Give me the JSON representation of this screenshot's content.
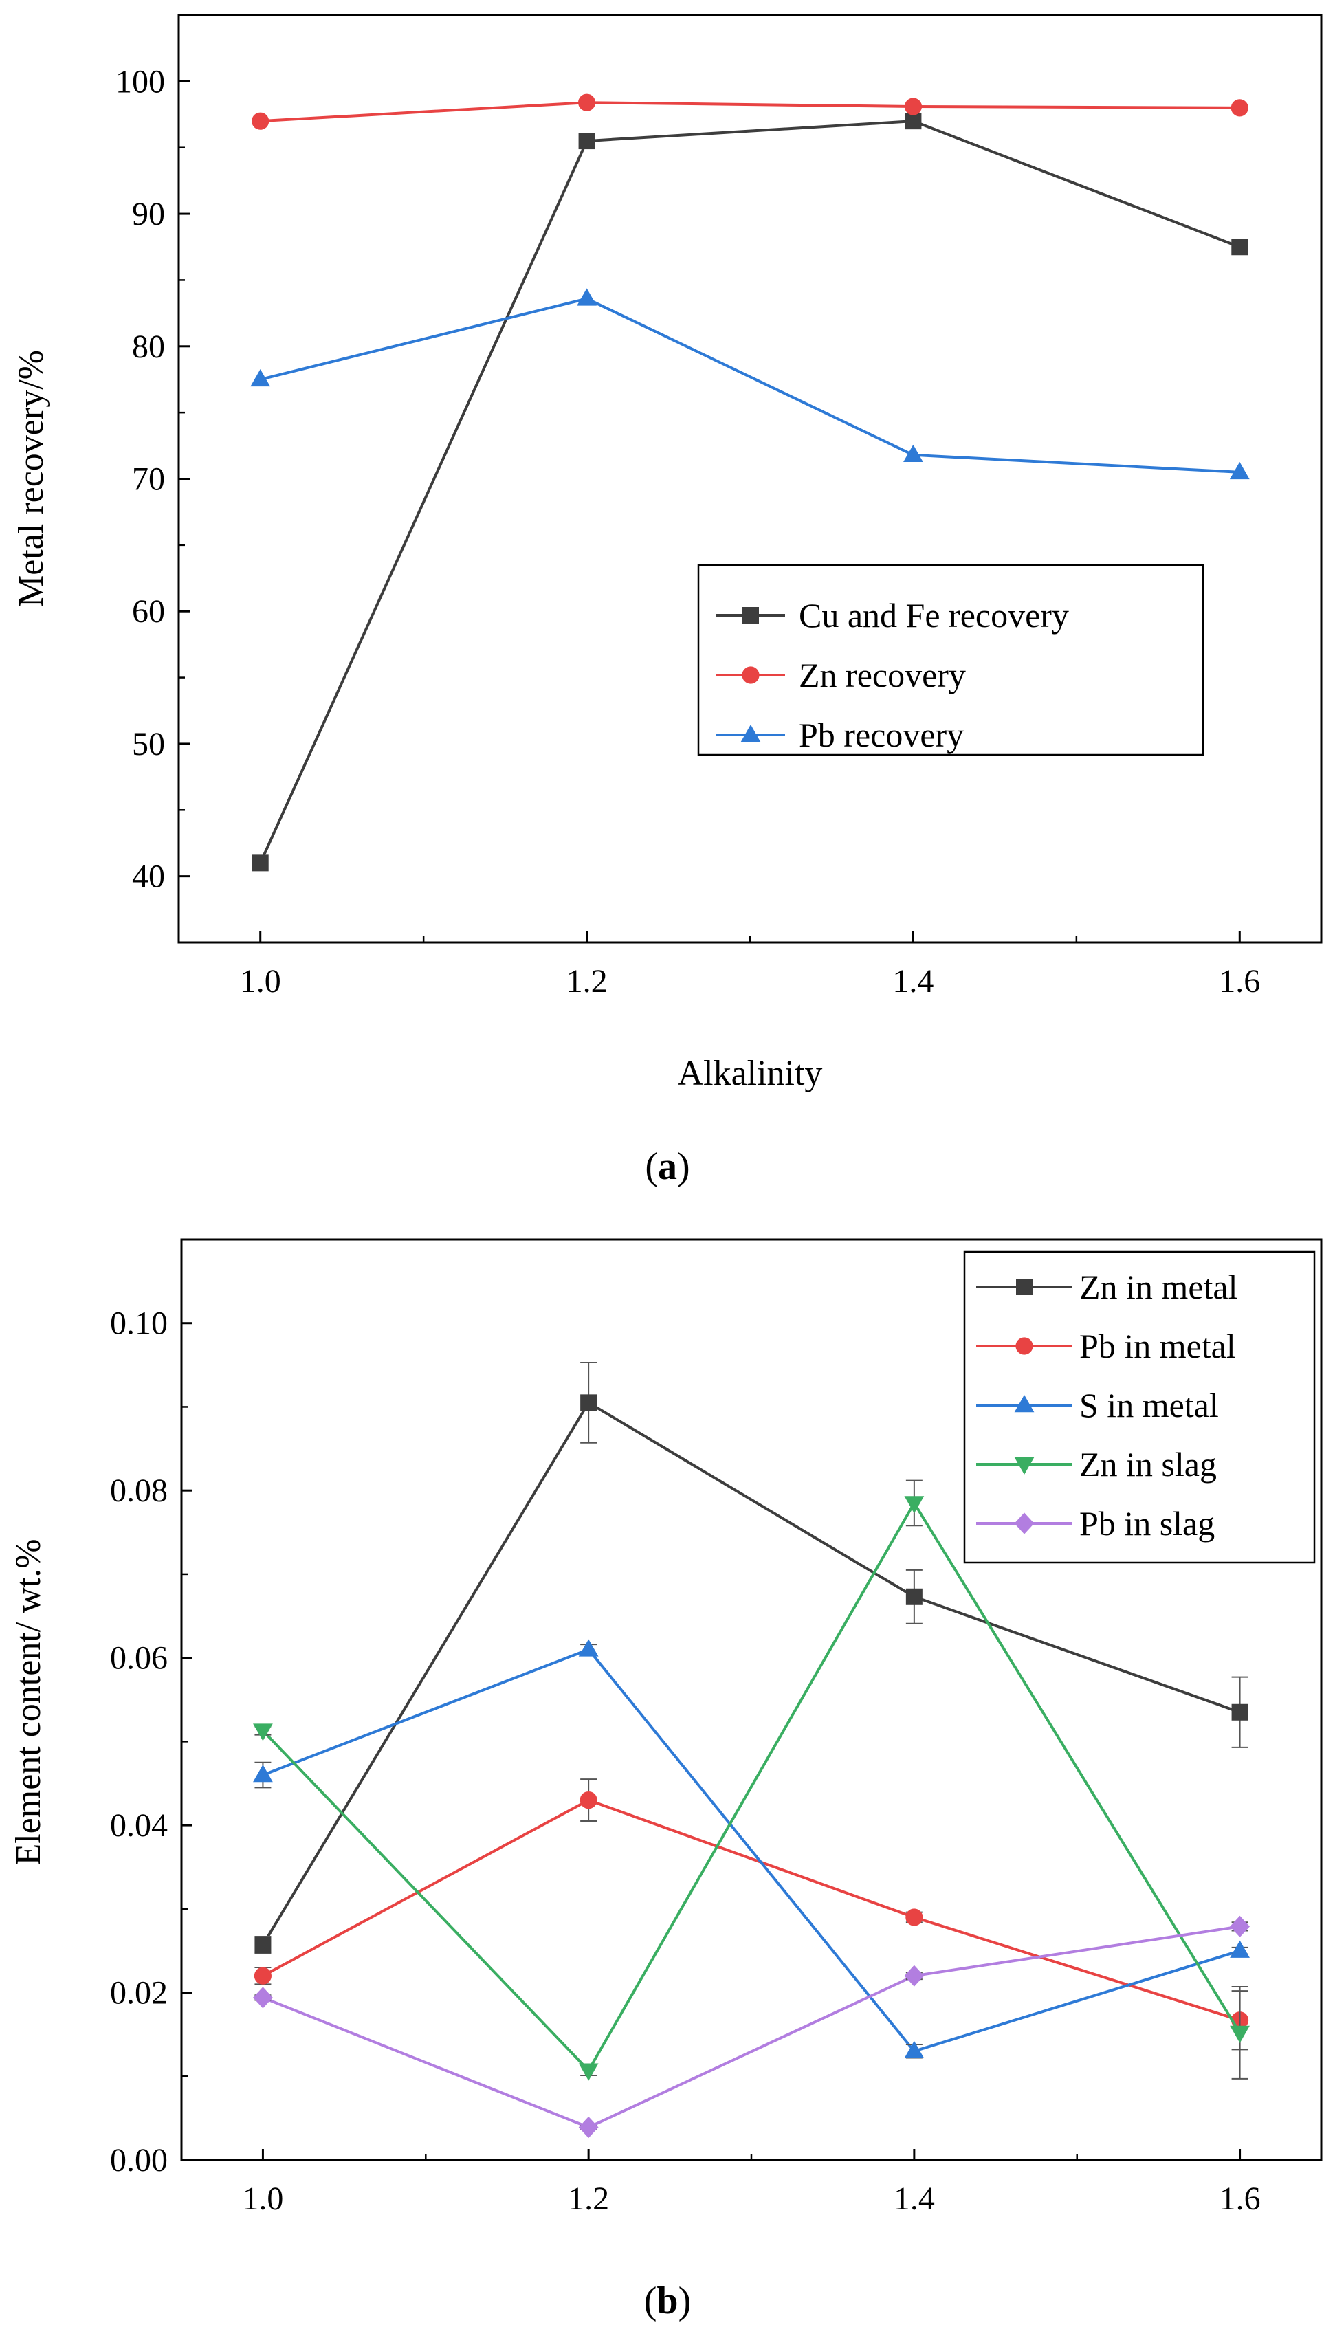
{
  "colors": {
    "cu_fe": "#3d3d3d",
    "zn": "#e84343",
    "pb": "#2e7ad6",
    "s_metal": "#2e7ad6",
    "zn_slag": "#3aae62",
    "pb_slag": "#b27ee0"
  },
  "chart_data": [
    {
      "id": "a",
      "type": "line",
      "caption_letter": "a",
      "xlabel": "Alkalinity",
      "ylabel": "Metal recovery/%",
      "x": [
        1.0,
        1.2,
        1.4,
        1.6
      ],
      "xlim": [
        0.95,
        1.65
      ],
      "ylim": [
        35,
        105
      ],
      "x_ticks": [
        "1.0",
        "1.2",
        "1.4",
        "1.6"
      ],
      "x_tick_values": [
        1.0,
        1.2,
        1.4,
        1.6
      ],
      "y_ticks": [
        "40",
        "50",
        "60",
        "70",
        "80",
        "90",
        "100"
      ],
      "y_tick_values": [
        40,
        50,
        60,
        70,
        80,
        90,
        100
      ],
      "legend_position": "center-right",
      "series": [
        {
          "name": "Cu and Fe recovery",
          "marker": "square",
          "color": "#3d3d3d",
          "values": [
            41.0,
            95.5,
            97.0,
            87.5
          ]
        },
        {
          "name": "Zn recovery",
          "marker": "circle",
          "color": "#e84343",
          "values": [
            97.0,
            98.4,
            98.1,
            98.0
          ]
        },
        {
          "name": "Pb recovery",
          "marker": "triangle-up",
          "color": "#2e7ad6",
          "values": [
            77.5,
            83.6,
            71.8,
            70.5
          ]
        }
      ]
    },
    {
      "id": "b",
      "type": "line",
      "caption_letter": "b",
      "xlabel": "",
      "ylabel": "Element content/ wt.%",
      "x": [
        1.0,
        1.2,
        1.4,
        1.6
      ],
      "xlim": [
        0.95,
        1.65
      ],
      "ylim": [
        0.0,
        0.11
      ],
      "x_ticks": [
        "1.0",
        "1.2",
        "1.4",
        "1.6"
      ],
      "x_tick_values": [
        1.0,
        1.2,
        1.4,
        1.6
      ],
      "y_ticks": [
        "0.00",
        "0.02",
        "0.04",
        "0.06",
        "0.08",
        "0.10"
      ],
      "y_tick_values": [
        0.0,
        0.02,
        0.04,
        0.06,
        0.08,
        0.1
      ],
      "legend_position": "top-right",
      "series": [
        {
          "name": "Zn in metal",
          "marker": "square",
          "color": "#3d3d3d",
          "values": [
            0.0257,
            0.0905,
            0.0673,
            0.0535
          ],
          "errors": [
            0.001,
            0.0048,
            0.0032,
            0.0042
          ]
        },
        {
          "name": "Pb in metal",
          "marker": "circle",
          "color": "#e84343",
          "values": [
            0.022,
            0.043,
            0.029,
            0.0167
          ],
          "errors": [
            0.001,
            0.0025,
            0.0006,
            0.0035
          ]
        },
        {
          "name": "S in metal",
          "marker": "triangle-up",
          "color": "#2e7ad6",
          "values": [
            0.046,
            0.061,
            0.013,
            0.025
          ],
          "errors": [
            0.0015,
            0.0006,
            0.0008,
            0.0004
          ]
        },
        {
          "name": "Zn in slag",
          "marker": "triangle-down",
          "color": "#3aae62",
          "values": [
            0.0513,
            0.0107,
            0.0785,
            0.0152
          ],
          "errors": [
            0.0005,
            0.0006,
            0.0027,
            0.0055
          ]
        },
        {
          "name": "Pb in slag",
          "marker": "diamond",
          "color": "#b27ee0",
          "values": [
            0.0194,
            0.0039,
            0.022,
            0.0279
          ],
          "errors": [
            0.0003,
            0.0002,
            0.0004,
            0.0005
          ]
        }
      ]
    }
  ]
}
